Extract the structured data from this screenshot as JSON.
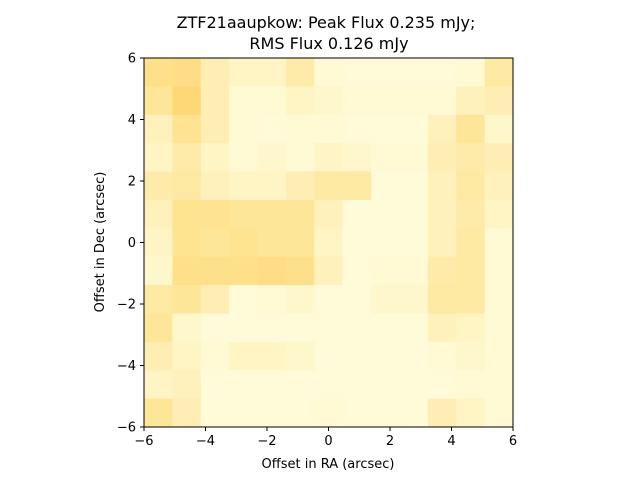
{
  "chart_data": {
    "type": "heatmap",
    "title_line1": "ZTF21aaupkow: Peak Flux 0.235 mJy;",
    "title_line2": "RMS Flux 0.126 mJy",
    "xlabel": "Offset in RA (arcsec)",
    "ylabel": "Offset in Dec (arcsec)",
    "xlim": [
      -6,
      6
    ],
    "ylim": [
      -6,
      6
    ],
    "xticks": [
      -6,
      -4,
      -2,
      0,
      2,
      4,
      6
    ],
    "yticks": [
      -6,
      -4,
      -2,
      0,
      2,
      4,
      6
    ],
    "xtick_labels": [
      "−6",
      "−4",
      "−2",
      "0",
      "2",
      "4",
      "6"
    ],
    "ytick_labels": [
      "−6",
      "−4",
      "−2",
      "0",
      "2",
      "4",
      "6"
    ],
    "colormap": "YlOrBr-like (pale yellow to orange)",
    "grid": false,
    "note_rows": "rows listed top (Dec +6) to bottom (Dec -6); columns left (RA -6) to right (RA +6); values are relative intensity 0-1",
    "values": [
      [
        0.55,
        0.6,
        0.3,
        0.2,
        0.2,
        0.35,
        0.1,
        0.08,
        0.08,
        0.08,
        0.08,
        0.1,
        0.4
      ],
      [
        0.45,
        0.7,
        0.3,
        0.1,
        0.1,
        0.2,
        0.15,
        0.1,
        0.1,
        0.1,
        0.1,
        0.25,
        0.3
      ],
      [
        0.25,
        0.5,
        0.3,
        0.1,
        0.08,
        0.1,
        0.1,
        0.08,
        0.08,
        0.08,
        0.25,
        0.45,
        0.15
      ],
      [
        0.2,
        0.35,
        0.2,
        0.1,
        0.15,
        0.1,
        0.2,
        0.15,
        0.1,
        0.1,
        0.3,
        0.35,
        0.3
      ],
      [
        0.35,
        0.4,
        0.25,
        0.2,
        0.2,
        0.3,
        0.4,
        0.4,
        0.08,
        0.08,
        0.25,
        0.4,
        0.25
      ],
      [
        0.25,
        0.5,
        0.5,
        0.45,
        0.45,
        0.45,
        0.25,
        0.08,
        0.08,
        0.08,
        0.25,
        0.35,
        0.2
      ],
      [
        0.2,
        0.5,
        0.45,
        0.5,
        0.45,
        0.45,
        0.2,
        0.08,
        0.08,
        0.08,
        0.25,
        0.4,
        0.1
      ],
      [
        0.15,
        0.55,
        0.55,
        0.55,
        0.6,
        0.55,
        0.25,
        0.08,
        0.1,
        0.1,
        0.35,
        0.4,
        0.1
      ],
      [
        0.4,
        0.45,
        0.3,
        0.08,
        0.1,
        0.15,
        0.08,
        0.08,
        0.15,
        0.15,
        0.4,
        0.4,
        0.1
      ],
      [
        0.45,
        0.15,
        0.08,
        0.08,
        0.08,
        0.08,
        0.08,
        0.08,
        0.08,
        0.08,
        0.25,
        0.2,
        0.1
      ],
      [
        0.3,
        0.2,
        0.1,
        0.2,
        0.2,
        0.15,
        0.08,
        0.08,
        0.08,
        0.08,
        0.1,
        0.15,
        0.1
      ],
      [
        0.2,
        0.25,
        0.08,
        0.08,
        0.08,
        0.08,
        0.08,
        0.08,
        0.08,
        0.08,
        0.08,
        0.1,
        0.1
      ],
      [
        0.45,
        0.3,
        0.08,
        0.08,
        0.08,
        0.08,
        0.1,
        0.08,
        0.08,
        0.08,
        0.3,
        0.2,
        0.1
      ]
    ]
  }
}
